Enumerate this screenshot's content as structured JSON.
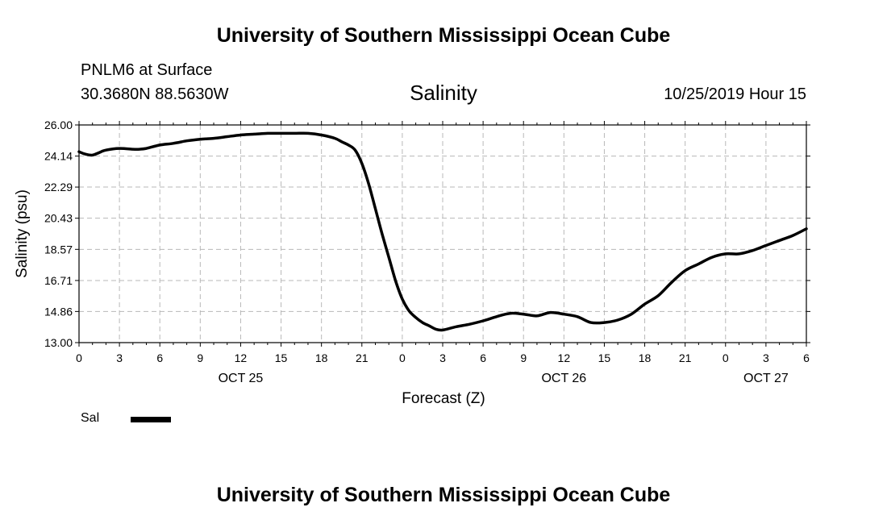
{
  "header": {
    "title": "University of Southern Mississippi Ocean Cube",
    "station": "PNLM6 at Surface",
    "coords": "30.3680N 88.5630W",
    "chart_title": "Salinity",
    "datestamp": "10/25/2019 Hour 15"
  },
  "footer": {
    "title": "University of Southern Mississippi Ocean Cube"
  },
  "legend": {
    "label": "Sal"
  },
  "chart_data": {
    "type": "line",
    "title": "Salinity",
    "xlabel": "Forecast (Z)",
    "ylabel": "Salinity (psu)",
    "x_unit": "hours from OCT 25 00Z",
    "xlim": [
      0,
      54
    ],
    "ylim": [
      13.0,
      26.0
    ],
    "y_ticks": [
      "13.00",
      "14.86",
      "16.71",
      "18.57",
      "20.43",
      "22.29",
      "24.14",
      "26.00"
    ],
    "x_ticks": [
      {
        "x": 0,
        "label": "0"
      },
      {
        "x": 3,
        "label": "3"
      },
      {
        "x": 6,
        "label": "6"
      },
      {
        "x": 9,
        "label": "9"
      },
      {
        "x": 12,
        "label": "12"
      },
      {
        "x": 15,
        "label": "15"
      },
      {
        "x": 18,
        "label": "18"
      },
      {
        "x": 21,
        "label": "21"
      },
      {
        "x": 24,
        "label": "0"
      },
      {
        "x": 27,
        "label": "3"
      },
      {
        "x": 30,
        "label": "6"
      },
      {
        "x": 33,
        "label": "9"
      },
      {
        "x": 36,
        "label": "12"
      },
      {
        "x": 39,
        "label": "15"
      },
      {
        "x": 42,
        "label": "18"
      },
      {
        "x": 45,
        "label": "21"
      },
      {
        "x": 48,
        "label": "0"
      },
      {
        "x": 51,
        "label": "3"
      },
      {
        "x": 54,
        "label": "6"
      }
    ],
    "day_labels": [
      {
        "x": 12,
        "label": "OCT 25"
      },
      {
        "x": 36,
        "label": "OCT 26"
      },
      {
        "x": 51,
        "label": "OCT 27"
      }
    ],
    "grid": true,
    "series": [
      {
        "name": "Sal",
        "color": "#000000",
        "x": [
          0,
          0.5,
          1,
          1.5,
          2,
          3,
          4,
          4.5,
          5,
          6,
          7,
          8,
          9,
          10,
          11,
          12,
          13,
          14,
          15,
          16,
          17,
          18,
          19,
          19.5,
          20,
          20.5,
          21,
          21.5,
          22,
          22.5,
          23,
          23.5,
          24,
          24.5,
          25,
          25.5,
          26,
          26.5,
          27,
          28,
          29,
          30,
          31,
          32,
          33,
          34,
          35,
          36,
          37,
          38,
          39,
          40,
          41,
          42,
          43,
          44,
          45,
          46,
          47,
          48,
          49,
          50,
          51,
          52,
          53,
          54
        ],
        "values": [
          24.4,
          24.25,
          24.2,
          24.35,
          24.5,
          24.6,
          24.55,
          24.55,
          24.6,
          24.8,
          24.9,
          25.05,
          25.15,
          25.2,
          25.3,
          25.4,
          25.45,
          25.5,
          25.5,
          25.5,
          25.5,
          25.4,
          25.2,
          25.0,
          24.8,
          24.5,
          23.7,
          22.5,
          21.0,
          19.5,
          18.1,
          16.7,
          15.6,
          14.9,
          14.5,
          14.2,
          14.0,
          13.8,
          13.75,
          13.95,
          14.1,
          14.3,
          14.55,
          14.75,
          14.7,
          14.6,
          14.8,
          14.7,
          14.55,
          14.2,
          14.2,
          14.35,
          14.7,
          15.3,
          15.8,
          16.6,
          17.3,
          17.7,
          18.1,
          18.3,
          18.3,
          18.5,
          18.8,
          19.1,
          19.4,
          19.8
        ]
      }
    ]
  }
}
